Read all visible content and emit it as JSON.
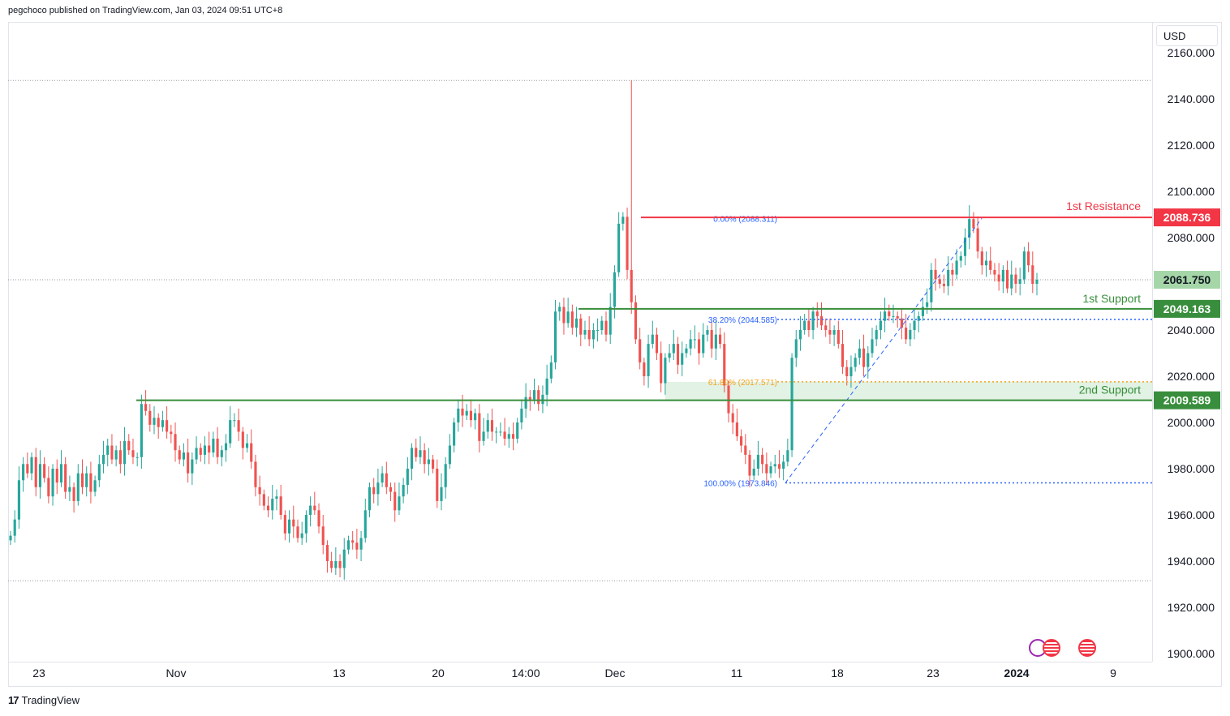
{
  "header": {
    "published": "pegchoco published on TradingView.com, Jan 03, 2024 09:51 UTC+8"
  },
  "currency": "USD",
  "footer": {
    "brand": "TradingView"
  },
  "colors": {
    "up": "#26a69a",
    "down": "#ef5350",
    "resistance": "#f23645",
    "support": "#388e3c",
    "fib": "#2962ff",
    "fib618": "#f7a21b",
    "grid": "#e0e3eb"
  },
  "chart_data": {
    "type": "candlestick",
    "y_axis": {
      "min": 1900,
      "max": 2160,
      "ticks": [
        "2160.000",
        "2140.000",
        "2120.000",
        "2100.000",
        "2080.000",
        "2040.000",
        "2020.000",
        "2000.000",
        "1980.000",
        "1960.000",
        "1940.000",
        "1920.000",
        "1900.000"
      ]
    },
    "x_axis": {
      "ticks": [
        "23",
        "Nov",
        "13",
        "20",
        "14:00",
        "Dec",
        "11",
        "18",
        "23",
        "2024",
        "9"
      ]
    },
    "levels": [
      {
        "name": "1st Resistance",
        "value": 2088.736,
        "label": "2088.736"
      },
      {
        "name": "1st Support",
        "value": 2049.163,
        "label": "2049.163"
      },
      {
        "name": "2nd Support",
        "value": 2009.589,
        "label": "2009.589"
      }
    ],
    "current_price": {
      "value": 2061.75,
      "label": "2061.750"
    },
    "fibonacci": [
      {
        "label": "0.00% (2088.311)",
        "value": 2088.311
      },
      {
        "label": "38.20% (2044.585)",
        "value": 2044.585
      },
      {
        "label": "61.80% (2017.571)",
        "value": 2017.571
      },
      {
        "label": "100.00% (1973.846)",
        "value": 1973.846
      }
    ],
    "dotted_reference_lines": [
      2148,
      2061.75,
      1931.5
    ],
    "candles_close": [
      1951,
      1958,
      1975,
      1982,
      1978,
      1985,
      1972,
      1982,
      1976,
      1968,
      1980,
      1974,
      1982,
      1970,
      1972,
      1966,
      1978,
      1972,
      1978,
      1970,
      1975,
      1982,
      1986,
      1990,
      1984,
      1988,
      1982,
      1992,
      1988,
      1985,
      1985,
      2008,
      2005,
      1999,
      2002,
      1998,
      2001,
      1996,
      1995,
      1988,
      1984,
      1987,
      1978,
      1984,
      1989,
      1986,
      1990,
      1987,
      1993,
      1985,
      1988,
      1991,
      2001,
      2001,
      1996,
      1989,
      1991,
      1983,
      1972,
      1969,
      1964,
      1962,
      1967,
      1968,
      1960,
      1952,
      1958,
      1955,
      1950,
      1952,
      1960,
      1964,
      1962,
      1955,
      1947,
      1940,
      1937,
      1940,
      1937,
      1945,
      1949,
      1948,
      1945,
      1950,
      1962,
      1972,
      1969,
      1974,
      1978,
      1972,
      1970,
      1962,
      1968,
      1973,
      1980,
      1989,
      1985,
      1988,
      1982,
      1984,
      1980,
      1966,
      1972,
      1982,
      1990,
      2000,
      2006,
      2003,
      2005,
      2001,
      2004,
      1992,
      1996,
      2001,
      1996,
      1996,
      1996,
      1993,
      1995,
      1993,
      2000,
      2006,
      2011,
      2010,
      2014,
      2008,
      2012,
      2019,
      2026,
      2048,
      2050,
      2043,
      2048,
      2041,
      2045,
      2038,
      2040,
      2036,
      2040,
      2040,
      2044,
      2038,
      2050,
      2065,
      2086,
      2089,
      2066,
      2052,
      2036,
      2026,
      2020,
      2034,
      2038,
      2030,
      2017,
      2028,
      2030,
      2034,
      2025,
      2030,
      2032,
      2036,
      2036,
      2030,
      2038,
      2040,
      2032,
      2038,
      2034,
      2016,
      2004,
      2000,
      1994,
      1990,
      1986,
      1977,
      1980,
      1986,
      1982,
      1978,
      1981,
      1982,
      1980,
      1983,
      1988,
      2028,
      2036,
      2040,
      2044,
      2040,
      2048,
      2046,
      2042,
      2040,
      2038,
      2040,
      2034,
      2024,
      2020,
      2024,
      2028,
      2032,
      2024,
      2030,
      2036,
      2040,
      2044,
      2048,
      2046,
      2046,
      2045,
      2041,
      2036,
      2040,
      2044,
      2046,
      2050,
      2052,
      2066,
      2062,
      2060,
      2059,
      2066,
      2064,
      2070,
      2072,
      2080,
      2088,
      2084,
      2074,
      2068,
      2070,
      2066,
      2064,
      2061,
      2066,
      2058,
      2064,
      2060,
      2062,
      2074,
      2068,
      2060,
      2061.75
    ],
    "candles_volatility_hint": "one long wick near Dec 4 reaching 2148"
  }
}
